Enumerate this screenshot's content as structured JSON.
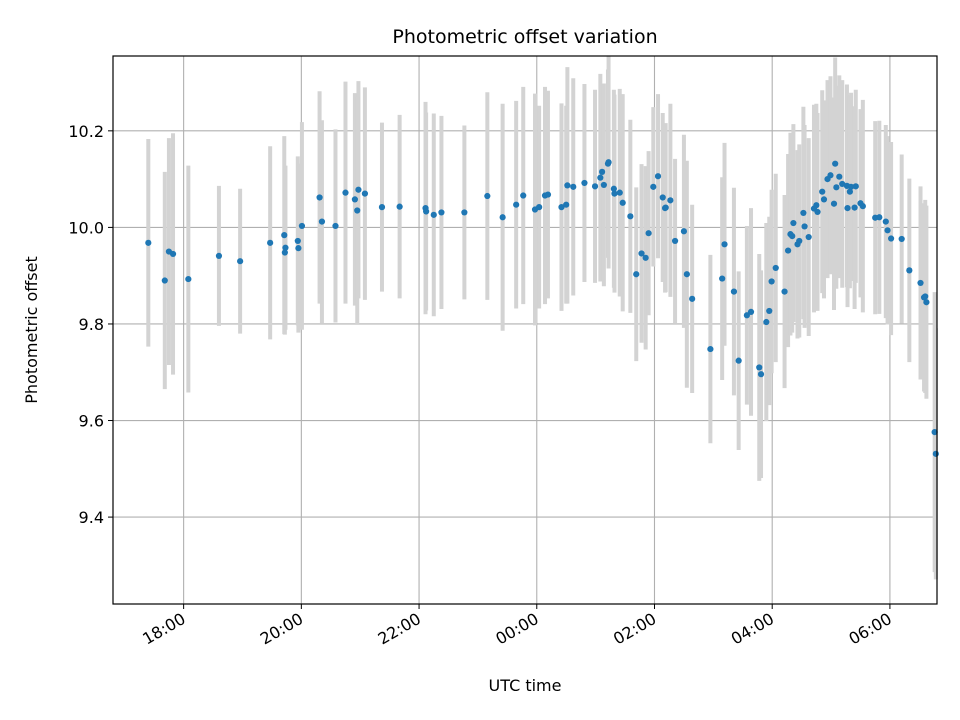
{
  "chart_data": {
    "type": "scatter",
    "title": "Photometric offset variation",
    "xlabel": "UTC time",
    "ylabel": "Photometric offset",
    "x_unit": "hours since 18:00 UTC on the first day (tick labels wrap after 24:00)",
    "xlim": [
      -1.2,
      12.8
    ],
    "ylim": [
      9.22,
      10.355
    ],
    "grid": true,
    "x_ticks": [
      {
        "value": 0,
        "label": "18:00"
      },
      {
        "value": 2,
        "label": "20:00"
      },
      {
        "value": 4,
        "label": "22:00"
      },
      {
        "value": 6,
        "label": "00:00"
      },
      {
        "value": 8,
        "label": "02:00"
      },
      {
        "value": 10,
        "label": "04:00"
      },
      {
        "value": 12,
        "label": "06:00"
      }
    ],
    "y_ticks": [
      {
        "value": 9.4,
        "label": "9.4"
      },
      {
        "value": 9.6,
        "label": "9.6"
      },
      {
        "value": 9.8,
        "label": "9.8"
      },
      {
        "value": 10.0,
        "label": "10.0"
      },
      {
        "value": 10.2,
        "label": "10.2"
      }
    ],
    "colors": {
      "point": "#1f77b4",
      "errorbar": "#d3d3d3",
      "grid": "#b0b0b0",
      "axes": "#000000"
    },
    "series": [
      {
        "x": [
          -0.6,
          -0.32,
          -0.25,
          -0.18,
          0.08,
          0.6,
          0.96,
          1.47,
          1.71,
          1.73,
          1.72,
          1.94,
          1.95,
          2.01,
          2.31,
          2.35,
          2.58,
          2.75,
          2.91,
          2.97,
          2.95,
          3.08,
          3.37,
          3.67,
          4.12,
          4.11,
          4.25,
          4.38,
          4.77,
          5.16,
          5.42,
          5.65,
          5.77,
          5.97,
          6.04,
          6.14,
          6.19,
          6.42,
          6.5,
          6.52,
          6.62,
          6.81,
          6.99,
          7.08,
          7.11,
          7.14,
          7.21,
          7.22,
          7.31,
          7.32,
          7.41,
          7.46,
          7.59,
          7.69,
          7.78,
          7.85,
          7.9,
          7.98,
          8.06,
          8.14,
          8.18,
          8.19,
          8.27,
          8.35,
          8.5,
          8.55,
          8.64,
          8.95,
          9.15,
          9.19,
          9.35,
          9.43,
          9.57,
          9.64,
          9.78,
          9.81,
          9.9,
          9.95,
          9.99,
          10.06,
          10.21,
          10.27,
          10.34,
          10.31,
          10.36,
          10.43,
          10.46,
          10.53,
          10.55,
          10.62,
          10.71,
          10.75,
          10.77,
          10.85,
          10.88,
          10.94,
          10.99,
          11.05,
          11.07,
          11.09,
          11.14,
          11.19,
          11.27,
          11.28,
          11.32,
          11.34,
          11.4,
          11.42,
          11.5,
          11.54,
          11.75,
          11.82,
          11.93,
          11.96,
          12.02,
          12.2,
          12.33,
          12.52,
          12.58,
          12.6,
          12.62,
          12.76,
          12.78
        ],
        "y": [
          9.968,
          9.89,
          9.95,
          9.945,
          9.893,
          9.941,
          9.93,
          9.968,
          9.984,
          9.958,
          9.948,
          9.972,
          9.957,
          10.003,
          10.062,
          10.012,
          10.003,
          10.072,
          10.058,
          10.078,
          10.035,
          10.07,
          10.042,
          10.043,
          10.033,
          10.04,
          10.026,
          10.031,
          10.031,
          10.065,
          10.021,
          10.047,
          10.066,
          10.037,
          10.042,
          10.066,
          10.068,
          10.042,
          10.047,
          10.087,
          10.084,
          10.092,
          10.085,
          10.103,
          10.115,
          10.088,
          10.132,
          10.135,
          10.08,
          10.07,
          10.072,
          10.051,
          10.023,
          9.903,
          9.946,
          9.937,
          9.988,
          10.084,
          10.106,
          10.062,
          10.04,
          10.041,
          10.056,
          9.972,
          9.992,
          9.903,
          9.852,
          9.748,
          9.894,
          9.965,
          9.867,
          9.724,
          9.818,
          9.825,
          9.71,
          9.696,
          9.804,
          9.827,
          9.888,
          9.916,
          9.867,
          9.952,
          9.982,
          9.986,
          10.009,
          9.965,
          9.972,
          10.03,
          10.002,
          9.98,
          10.039,
          10.046,
          10.032,
          10.074,
          10.058,
          10.1,
          10.108,
          10.049,
          10.132,
          10.083,
          10.105,
          10.09,
          10.086,
          10.04,
          10.074,
          10.084,
          10.041,
          10.085,
          10.05,
          10.044,
          10.02,
          10.021,
          10.012,
          9.994,
          9.977,
          9.976,
          9.911,
          9.885,
          9.855,
          9.857,
          9.845,
          9.576,
          9.531
        ],
        "err": [
          0.215,
          0.225,
          0.235,
          0.25,
          0.235,
          0.145,
          0.15,
          0.2,
          0.205,
          0.17,
          0.17,
          0.175,
          0.175,
          0.215,
          0.22,
          0.21,
          0.2,
          0.23,
          0.22,
          0.225,
          0.235,
          0.22,
          0.175,
          0.19,
          0.205,
          0.22,
          0.21,
          0.2,
          0.18,
          0.215,
          0.235,
          0.215,
          0.225,
          0.24,
          0.21,
          0.225,
          0.215,
          0.215,
          0.205,
          0.245,
          0.225,
          0.205,
          0.2,
          0.215,
          0.175,
          0.21,
          0.195,
          0.22,
          0.205,
          0.205,
          0.215,
          0.225,
          0.2,
          0.18,
          0.185,
          0.19,
          0.17,
          0.165,
          0.17,
          0.175,
          0.175,
          0.175,
          0.2,
          0.17,
          0.2,
          0.235,
          0.195,
          0.195,
          0.21,
          0.21,
          0.215,
          0.185,
          0.185,
          0.215,
          0.235,
          0.215,
          0.205,
          0.195,
          0.19,
          0.195,
          0.2,
          0.2,
          0.2,
          0.21,
          0.205,
          0.195,
          0.2,
          0.22,
          0.21,
          0.205,
          0.215,
          0.21,
          0.205,
          0.21,
          0.205,
          0.205,
          0.205,
          0.22,
          0.22,
          0.21,
          0.21,
          0.215,
          0.21,
          0.205,
          0.2,
          0.195,
          0.21,
          0.2,
          0.195,
          0.22,
          0.2,
          0.2,
          0.2,
          0.195,
          0.2,
          0.175,
          0.19,
          0.2,
          0.195,
          0.2,
          0.2,
          0.29,
          0.26
        ]
      }
    ]
  }
}
